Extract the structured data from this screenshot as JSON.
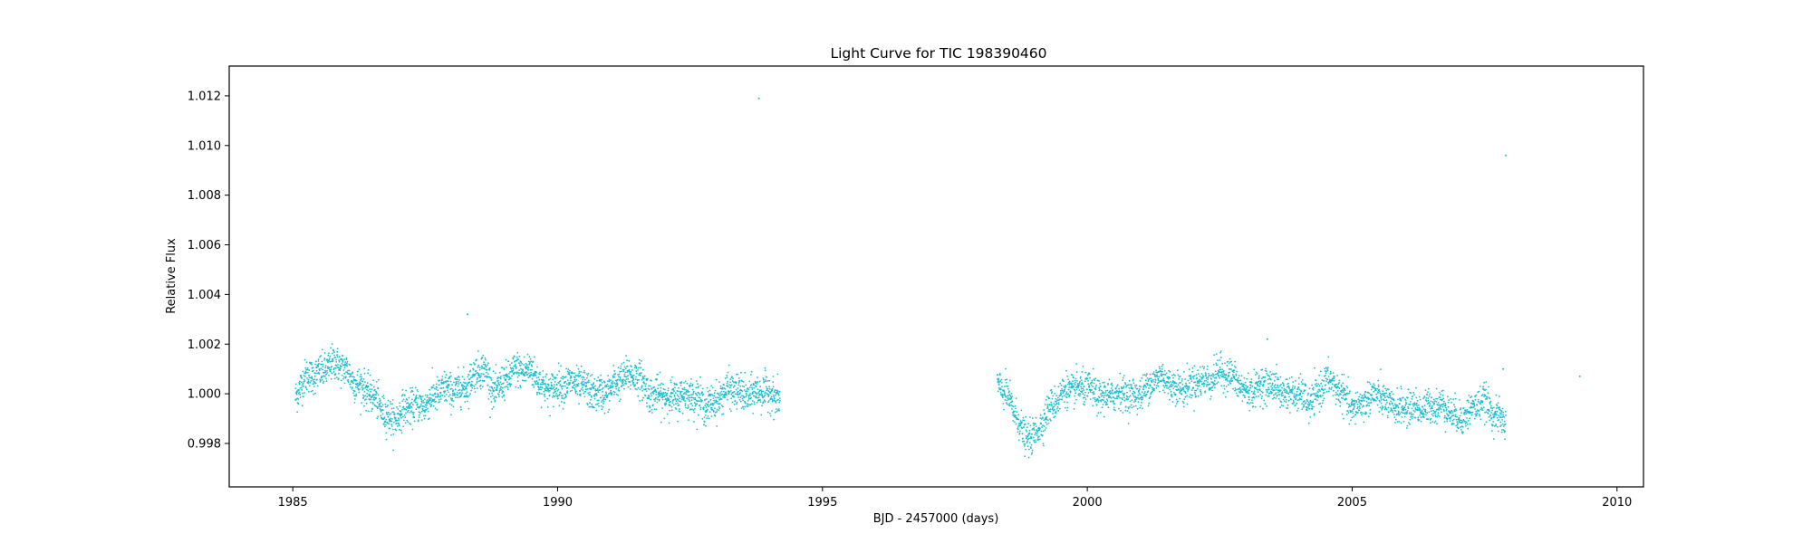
{
  "chart_data": {
    "type": "scatter",
    "title": "Light Curve for TIC 198390460",
    "xlabel": "BJD - 2457000 (days)",
    "ylabel": "Relative Flux",
    "xlim": [
      1983.8,
      2010.5
    ],
    "ylim": [
      0.99625,
      1.0132
    ],
    "x_ticks": [
      1985,
      1990,
      1995,
      2000,
      2005,
      2010
    ],
    "x_tick_labels": [
      "1985",
      "1990",
      "1995",
      "2000",
      "2005",
      "2010"
    ],
    "y_ticks": [
      0.998,
      1.0,
      1.002,
      1.004,
      1.006,
      1.008,
      1.01,
      1.012
    ],
    "y_tick_labels": [
      "0.998",
      "1.000",
      "1.002",
      "1.004",
      "1.006",
      "1.008",
      "1.010",
      "1.012"
    ],
    "grid": false,
    "legend": "none",
    "marker_color": "#17becf",
    "series": [
      {
        "segments": [
          {
            "x_start": 1985.05,
            "x_end": 1994.2,
            "trend_x": [
              1985.05,
              1985.3,
              1985.8,
              1986.0,
              1986.5,
              1986.9,
              1987.3,
              1987.8,
              1988.3,
              1988.6,
              1988.8,
              1989.2,
              1989.5,
              1989.8,
              1990.2,
              1990.6,
              1991.0,
              1991.5,
              1991.8,
              1992.3,
              1992.8,
              1993.3,
              1993.8,
              1994.2
            ],
            "trend_y": [
              0.9998,
              1.0008,
              1.0011,
              1.001,
              0.9998,
              0.999,
              0.9995,
              1.0,
              1.0004,
              1.001,
              1.0002,
              1.0008,
              1.0011,
              1.0,
              1.0006,
              1.0,
              1.0002,
              1.0009,
              0.9998,
              1.0,
              0.9996,
              1.0001,
              1.0,
              0.9999
            ],
            "scatter_sd": 0.00035
          },
          {
            "x_start": 1998.3,
            "x_end": 2007.9,
            "trend_x": [
              1998.3,
              1998.5,
              1998.8,
              1999.0,
              1999.3,
              1999.6,
              2000.2,
              2000.8,
              2001.4,
              2001.9,
              2002.5,
              2003.0,
              2003.6,
              2004.2,
              2004.5,
              2005.0,
              2005.5,
              2006.0,
              2006.5,
              2007.0,
              2007.5,
              2007.9
            ],
            "trend_y": [
              1.0006,
              0.9998,
              0.9983,
              0.9984,
              0.9993,
              1.0003,
              1.0,
              0.9999,
              1.0006,
              1.0002,
              1.0009,
              1.0002,
              1.0003,
              0.9996,
              1.0006,
              0.9995,
              0.9999,
              0.9993,
              0.9996,
              0.9991,
              0.9996,
              0.9989
            ],
            "scatter_sd": 0.00033
          }
        ],
        "outliers": [
          {
            "x": 1993.8,
            "y": 1.0119
          },
          {
            "x": 2007.9,
            "y": 1.0096
          },
          {
            "x": 1988.3,
            "y": 1.0032
          },
          {
            "x": 2003.4,
            "y": 1.0022
          },
          {
            "x": 2009.3,
            "y": 1.0007
          },
          {
            "x": 2007.85,
            "y": 1.001
          }
        ]
      }
    ]
  }
}
